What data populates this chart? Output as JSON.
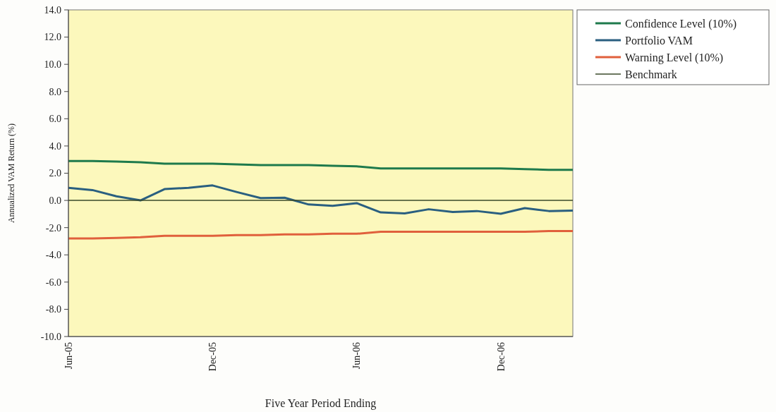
{
  "chart_data": {
    "type": "line",
    "xlabel": "Five Year Period Ending",
    "ylabel": "Annualized VAM Return (%)",
    "categories": [
      "Jun-05",
      null,
      null,
      null,
      null,
      null,
      "Dec-05",
      null,
      null,
      null,
      null,
      null,
      "Jun-06",
      null,
      null,
      null,
      null,
      null,
      "Dec-06",
      null,
      null,
      null
    ],
    "series": [
      {
        "name": "Confidence Level (10%)",
        "color": "#1e7a4c",
        "values": [
          2.9,
          2.9,
          2.85,
          2.8,
          2.7,
          2.7,
          2.7,
          2.65,
          2.6,
          2.6,
          2.6,
          2.55,
          2.5,
          2.35,
          2.35,
          2.35,
          2.35,
          2.35,
          2.35,
          2.3,
          2.25,
          2.25
        ]
      },
      {
        "name": "Portfolio VAM",
        "color": "#2a5f80",
        "values": [
          0.93,
          0.76,
          0.3,
          0.0,
          0.83,
          0.93,
          1.1,
          0.62,
          0.17,
          0.2,
          -0.3,
          -0.4,
          -0.2,
          -0.88,
          -0.95,
          -0.65,
          -0.85,
          -0.78,
          -0.98,
          -0.57,
          -0.78,
          -0.75
        ]
      },
      {
        "name": "Warning Level (10%)",
        "color": "#e0603c",
        "values": [
          -2.8,
          -2.8,
          -2.75,
          -2.7,
          -2.6,
          -2.6,
          -2.6,
          -2.55,
          -2.55,
          -2.5,
          -2.5,
          -2.45,
          -2.45,
          -2.3,
          -2.3,
          -2.3,
          -2.3,
          -2.3,
          -2.3,
          -2.3,
          -2.25,
          -2.25
        ]
      },
      {
        "name": "Benchmark",
        "color": "#3a4a2a",
        "values": [
          0,
          0,
          0,
          0,
          0,
          0,
          0,
          0,
          0,
          0,
          0,
          0,
          0,
          0,
          0,
          0,
          0,
          0,
          0,
          0,
          0,
          0
        ]
      }
    ],
    "ylim": [
      -10,
      14
    ],
    "yticks": [
      {
        "value": -10,
        "label": "-10.0"
      },
      {
        "value": -8,
        "label": "-8.0"
      },
      {
        "value": -6,
        "label": "-6.0"
      },
      {
        "value": -4,
        "label": "-4.0"
      },
      {
        "value": -2,
        "label": "-2.0"
      },
      {
        "value": 0,
        "label": "0.0"
      },
      {
        "value": 2,
        "label": "2.0"
      },
      {
        "value": 4,
        "label": "4.0"
      },
      {
        "value": 6,
        "label": "6.0"
      },
      {
        "value": 8,
        "label": "8.0"
      },
      {
        "value": 10,
        "label": "10.0"
      },
      {
        "value": 12,
        "label": "12.0"
      },
      {
        "value": 14,
        "label": "14.0"
      }
    ],
    "grid": false,
    "legend": "top right"
  }
}
